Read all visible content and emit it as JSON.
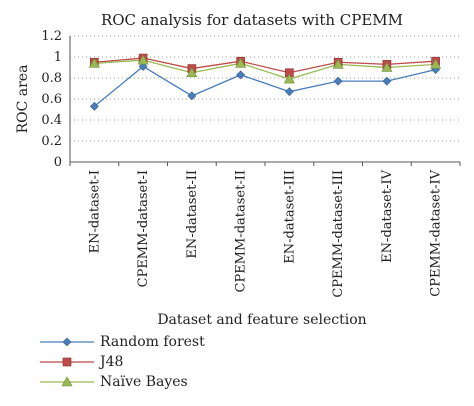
{
  "chart_data": {
    "type": "line",
    "title": "ROC analysis for datasets with CPEMM",
    "xlabel": "Dataset and feature selection",
    "ylabel": "ROC area",
    "ylim": [
      0,
      1.2
    ],
    "yticks": [
      "0",
      "0.2",
      "0.4",
      "0.6",
      "0.8",
      "1",
      "1.2"
    ],
    "grid": true,
    "legend_position": "bottom-left",
    "categories": [
      "EN-dataset-I",
      "CPEMM-dataset-I",
      "EN-dataset-II",
      "CPEMM-dataset-II",
      "EN-dataset-III",
      "CPEMM-dataset-III",
      "EN-dataset-IV",
      "CPEMM-dataset-IV"
    ],
    "series": [
      {
        "name": "Random forest",
        "color": "#4a7ebb",
        "marker": "diamond",
        "values": [
          0.53,
          0.91,
          0.63,
          0.83,
          0.67,
          0.77,
          0.77,
          0.88
        ]
      },
      {
        "name": "J48",
        "color": "#be4b48",
        "marker": "square",
        "values": [
          0.95,
          0.99,
          0.89,
          0.96,
          0.85,
          0.95,
          0.93,
          0.96
        ]
      },
      {
        "name": "Naïve Bayes",
        "color": "#98b954",
        "marker": "triangle",
        "values": [
          0.94,
          0.97,
          0.85,
          0.94,
          0.79,
          0.93,
          0.9,
          0.93
        ]
      }
    ]
  }
}
